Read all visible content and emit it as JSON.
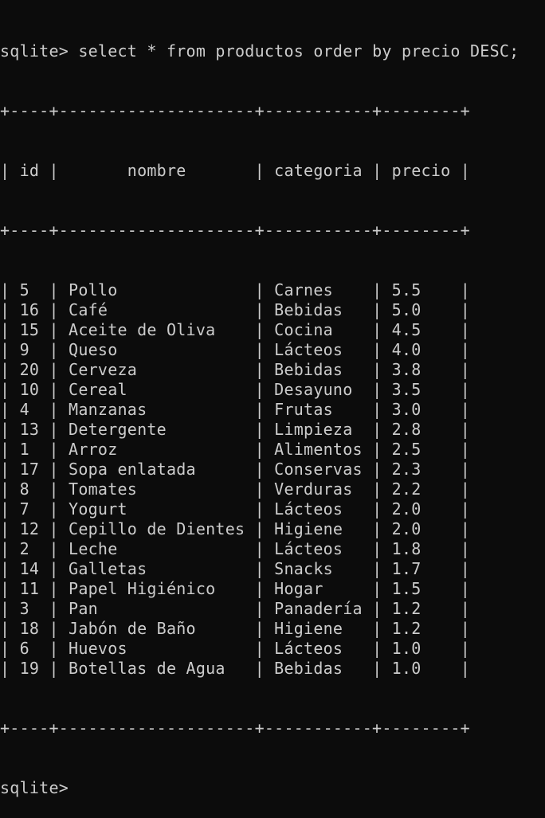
{
  "terminal": {
    "prompt": "sqlite>",
    "command": "select * from productos order by precio DESC;",
    "border": "+----+--------------------+-----------+--------+",
    "headers": [
      "id",
      "nombre",
      "categoria",
      "precio"
    ],
    "rows": [
      [
        "5",
        "Pollo",
        "Carnes",
        "5.5"
      ],
      [
        "16",
        "Café",
        "Bebidas",
        "5.0"
      ],
      [
        "15",
        "Aceite de Oliva",
        "Cocina",
        "4.5"
      ],
      [
        "9",
        "Queso",
        "Lácteos",
        "4.0"
      ],
      [
        "20",
        "Cerveza",
        "Bebidas",
        "3.8"
      ],
      [
        "10",
        "Cereal",
        "Desayuno",
        "3.5"
      ],
      [
        "4",
        "Manzanas",
        "Frutas",
        "3.0"
      ],
      [
        "13",
        "Detergente",
        "Limpieza",
        "2.8"
      ],
      [
        "1",
        "Arroz",
        "Alimentos",
        "2.5"
      ],
      [
        "17",
        "Sopa enlatada",
        "Conservas",
        "2.3"
      ],
      [
        "8",
        "Tomates",
        "Verduras",
        "2.2"
      ],
      [
        "7",
        "Yogurt",
        "Lácteos",
        "2.0"
      ],
      [
        "12",
        "Cepillo de Dientes",
        "Higiene",
        "2.0"
      ],
      [
        "2",
        "Leche",
        "Lácteos",
        "1.8"
      ],
      [
        "14",
        "Galletas",
        "Snacks",
        "1.7"
      ],
      [
        "11",
        "Papel Higiénico",
        "Hogar",
        "1.5"
      ],
      [
        "3",
        "Pan",
        "Panadería",
        "1.2"
      ],
      [
        "18",
        "Jabón de Baño",
        "Higiene",
        "1.2"
      ],
      [
        "6",
        "Huevos",
        "Lácteos",
        "1.0"
      ],
      [
        "19",
        "Botellas de Agua",
        "Bebidas",
        "1.0"
      ]
    ],
    "end_prompt": "sqlite>"
  }
}
